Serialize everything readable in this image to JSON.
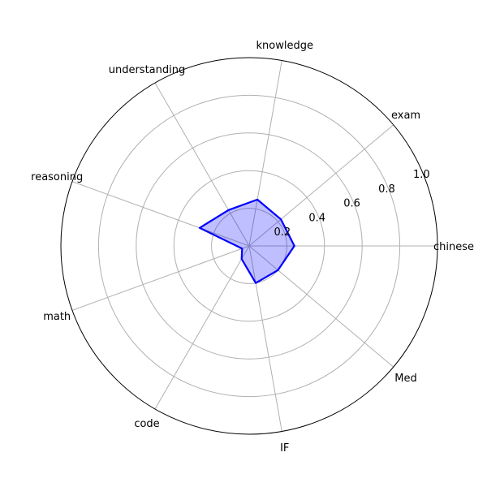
{
  "chart_data": {
    "type": "radar",
    "categories": [
      "chinese",
      "exam",
      "knowledge",
      "understanding",
      "reasoning",
      "math",
      "code",
      "IF",
      "Med"
    ],
    "series": [
      {
        "values": [
          0.24,
          0.22,
          0.25,
          0.22,
          0.28,
          0.04,
          0.08,
          0.2,
          0.2
        ],
        "line_color": "#0000ff",
        "fill_color": "#0000ff"
      }
    ],
    "r_ticks": [
      "0.2",
      "0.4",
      "0.6",
      "0.8",
      "1.0"
    ],
    "r_tick_values": [
      0.2,
      0.4,
      0.6,
      0.8,
      1.0
    ],
    "rlim": [
      0,
      1.0
    ],
    "grid": true,
    "title": "",
    "legend": false
  }
}
